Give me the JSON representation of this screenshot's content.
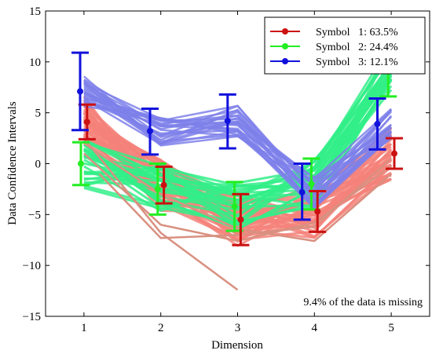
{
  "chart_data": {
    "type": "line",
    "xlabel": "Dimension",
    "ylabel": "Data Confidence Intervals",
    "xlim": [
      0.5,
      5.5
    ],
    "ylim": [
      -15,
      15
    ],
    "xticks": [
      "1",
      "2",
      "3",
      "4",
      "5"
    ],
    "yticks": [
      "15",
      "10",
      "5",
      "0",
      "−5",
      "−10",
      "−15"
    ],
    "ytick_values": [
      15,
      10,
      5,
      0,
      -5,
      -10,
      -15
    ],
    "grid": false,
    "legend_position": "top-right",
    "annotation": "9.4% of the data is missing",
    "series": [
      {
        "name": "Symbol   1: 63.5%",
        "color": "#cc1111",
        "band_color": "#f4837a",
        "x": [
          1.04,
          2.04,
          3.04,
          4.04,
          5.04
        ],
        "mean": [
          4.1,
          -2.1,
          -5.5,
          -4.7,
          1.0
        ],
        "ci_low": [
          2.4,
          -3.9,
          -8.0,
          -6.7,
          -0.5
        ],
        "ci_high": [
          5.8,
          -0.3,
          -3.0,
          -2.7,
          2.5
        ]
      },
      {
        "name": "Symbol   2: 24.4%",
        "color": "#22ee22",
        "band_color": "#33ee88",
        "x": [
          0.96,
          1.96,
          2.96,
          3.96,
          4.96
        ],
        "mean": [
          0.0,
          -2.5,
          -4.2,
          -2.0,
          9.5
        ],
        "ci_low": [
          -2.1,
          -5.0,
          -6.6,
          -4.5,
          6.6
        ],
        "ci_high": [
          2.1,
          -0.0,
          -1.8,
          0.5,
          12.4
        ]
      },
      {
        "name": "Symbol   3: 12.1%",
        "color": "#1111dd",
        "band_color": "#7e80ea",
        "x": [
          0.95,
          1.86,
          2.87,
          3.84,
          4.82
        ],
        "mean": [
          7.1,
          3.2,
          4.2,
          -2.8,
          3.9
        ],
        "ci_low": [
          3.3,
          0.9,
          1.5,
          -5.5,
          1.4
        ],
        "ci_high": [
          10.9,
          5.4,
          6.8,
          0.0,
          6.4
        ]
      }
    ]
  }
}
